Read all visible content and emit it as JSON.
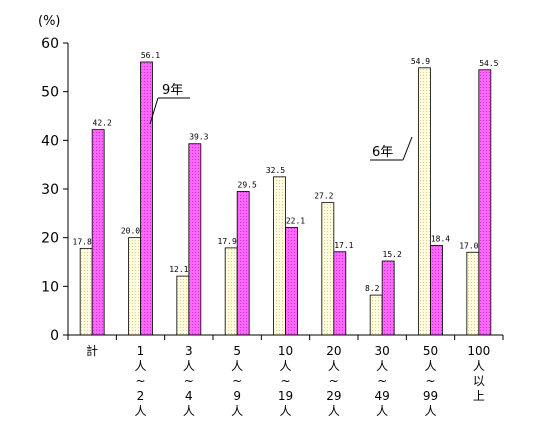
{
  "chart_data": {
    "type": "bar",
    "unit_label": "(%)",
    "categories": [
      [
        "計"
      ],
      [
        "1",
        "人",
        "~",
        "2",
        "人"
      ],
      [
        "3",
        "人",
        "~",
        "4",
        "人"
      ],
      [
        "5",
        "人",
        "~",
        "9",
        "人"
      ],
      [
        "10",
        "人",
        "~",
        "19",
        "人"
      ],
      [
        "20",
        "人",
        "~",
        "29",
        "人"
      ],
      [
        "30",
        "人",
        "~",
        "49",
        "人"
      ],
      [
        "50",
        "人",
        "~",
        "99",
        "人"
      ],
      [
        "100",
        "人",
        "以",
        "上"
      ]
    ],
    "series": [
      {
        "name": "6年",
        "color": "#ffffe0",
        "hatch": "#e8c890",
        "values": [
          17.8,
          20.0,
          12.1,
          17.9,
          32.5,
          27.2,
          8.2,
          54.9,
          17.0
        ],
        "labels": [
          "17.8",
          "20.0",
          "12.1",
          "17.9",
          "32.5",
          "27.2",
          "8.2",
          "54.9",
          "17.0"
        ]
      },
      {
        "name": "9年",
        "color": "#ff66ff",
        "hatch": "#cc33cc",
        "values": [
          42.2,
          56.1,
          39.3,
          29.5,
          22.1,
          17.1,
          15.2,
          18.4,
          54.5
        ],
        "labels": [
          "42.2",
          "56.1",
          "39.3",
          "29.5",
          "22.1",
          "17.1",
          "15.2",
          "18.4",
          "54.5"
        ]
      }
    ],
    "ylim": [
      0,
      60
    ],
    "yticks": [
      "0",
      "10",
      "20",
      "30",
      "40",
      "50",
      "60"
    ],
    "grid": false,
    "legend": "callouts"
  }
}
